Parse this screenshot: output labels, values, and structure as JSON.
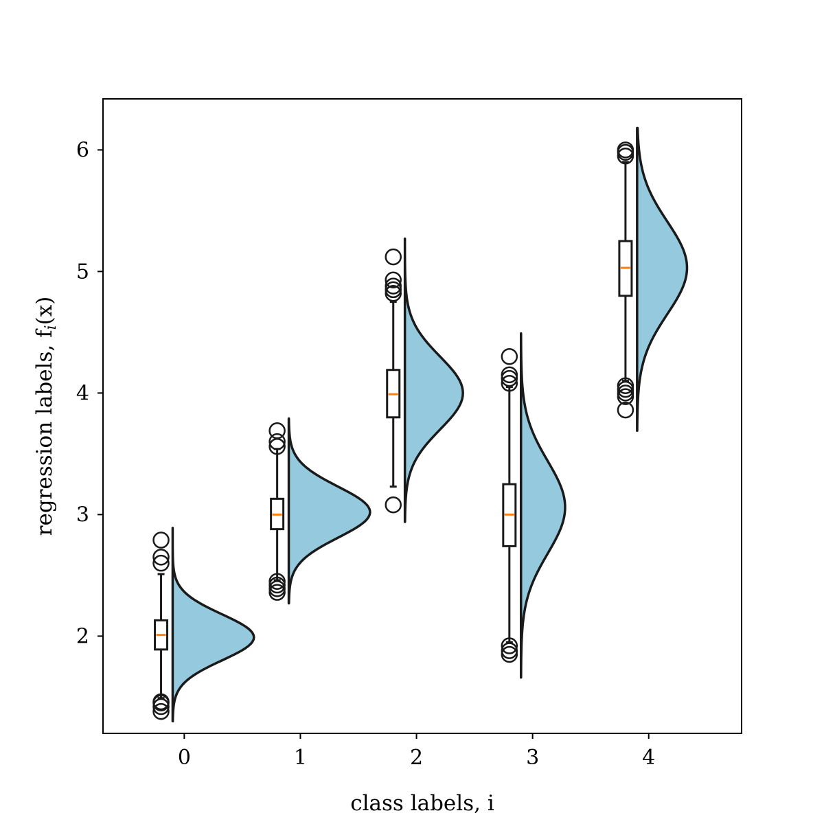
{
  "chart_data": {
    "type": "violin-box",
    "xlabel": "class labels, i",
    "ylabel_parts": [
      "regression labels, f",
      "i",
      "(x)"
    ],
    "xlim": [
      -0.7,
      4.8
    ],
    "ylim": [
      1.2,
      6.42
    ],
    "xticks": [
      "0",
      "1",
      "2",
      "3",
      "4"
    ],
    "yticks": [
      "2",
      "3",
      "4",
      "5",
      "6"
    ],
    "colors": {
      "violin_fill": "#95c9de",
      "median": "#ff7f0e",
      "stroke": "#1a1a1a"
    },
    "groups": [
      {
        "label": "0",
        "median": 2.01,
        "q1": 1.89,
        "q3": 2.13,
        "whisker_low": 1.49,
        "whisker_high": 2.51,
        "outliers": [
          1.38,
          1.42,
          1.45,
          1.46,
          2.6,
          2.65,
          2.79
        ],
        "violin": {
          "ymin": 1.3,
          "ymax": 2.89,
          "mode": 1.99,
          "sd": 0.19,
          "max_width": 0.7
        }
      },
      {
        "label": "1",
        "median": 3.0,
        "q1": 2.88,
        "q3": 3.13,
        "whisker_low": 2.46,
        "whisker_high": 3.54,
        "outliers": [
          2.36,
          2.39,
          2.42,
          2.45,
          3.56,
          3.6,
          3.69
        ],
        "violin": {
          "ymin": 2.27,
          "ymax": 3.79,
          "mode": 3.02,
          "sd": 0.21,
          "max_width": 0.7
        }
      },
      {
        "label": "2",
        "median": 3.99,
        "q1": 3.8,
        "q3": 4.19,
        "whisker_low": 3.23,
        "whisker_high": 4.75,
        "outliers": [
          3.08,
          4.82,
          4.85,
          4.88,
          4.93,
          5.12
        ],
        "violin": {
          "ymin": 2.94,
          "ymax": 5.27,
          "mode": 4.0,
          "sd": 0.3,
          "max_width": 0.5
        }
      },
      {
        "label": "3",
        "median": 3.0,
        "q1": 2.74,
        "q3": 3.25,
        "whisker_low": 1.95,
        "whisker_high": 4.05,
        "outliers": [
          1.85,
          1.88,
          1.92,
          4.08,
          4.12,
          4.15,
          4.3
        ],
        "violin": {
          "ymin": 1.66,
          "ymax": 4.49,
          "mode": 3.06,
          "sd": 0.38,
          "max_width": 0.38
        }
      },
      {
        "label": "4",
        "median": 5.03,
        "q1": 4.8,
        "q3": 5.25,
        "whisker_low": 4.1,
        "whisker_high": 5.9,
        "outliers": [
          3.86,
          3.97,
          4.0,
          4.03,
          4.06,
          5.95,
          5.98,
          6.0
        ],
        "violin": {
          "ymin": 3.69,
          "ymax": 6.18,
          "mode": 5.03,
          "sd": 0.38,
          "max_width": 0.43
        }
      }
    ]
  }
}
